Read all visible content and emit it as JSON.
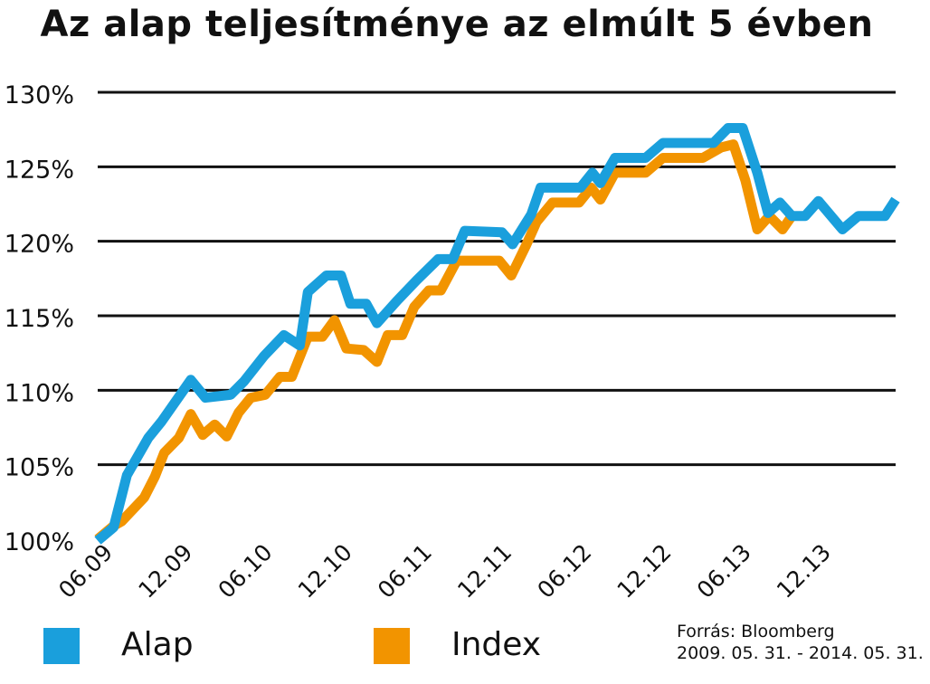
{
  "chart_data": {
    "type": "line",
    "title": "Az alap teljesítménye az elmúlt 5 évben",
    "xlabel": "",
    "ylabel": "",
    "ylim": [
      100,
      130
    ],
    "yticks": [
      "100%",
      "105%",
      "110%",
      "115%",
      "120%",
      "125%",
      "130%"
    ],
    "ytick_values": [
      100,
      105,
      110,
      115,
      120,
      125,
      130
    ],
    "x_range": [
      0,
      60
    ],
    "xticks": [
      {
        "label": "06.09",
        "x": 0
      },
      {
        "label": "12.09",
        "x": 6
      },
      {
        "label": "06.10",
        "x": 12
      },
      {
        "label": "12.10",
        "x": 18
      },
      {
        "label": "06.11",
        "x": 24
      },
      {
        "label": "12.11",
        "x": 30
      },
      {
        "label": "06.12",
        "x": 36
      },
      {
        "label": "12.12",
        "x": 42
      },
      {
        "label": "06.13",
        "x": 48
      },
      {
        "label": "12.13",
        "x": 54
      }
    ],
    "grid": true,
    "legend_position": "bottom",
    "series": [
      {
        "name": "Alap",
        "color": "#1a9fdc",
        "points": [
          [
            0,
            99.9
          ],
          [
            1.2,
            100.8
          ],
          [
            2.2,
            104.3
          ],
          [
            3.8,
            106.8
          ],
          [
            4.8,
            107.9
          ],
          [
            7.0,
            110.7
          ],
          [
            8.1,
            109.5
          ],
          [
            10.0,
            109.7
          ],
          [
            11.0,
            110.6
          ],
          [
            12.5,
            112.3
          ],
          [
            14.0,
            113.7
          ],
          [
            15.2,
            113.0
          ],
          [
            15.8,
            116.6
          ],
          [
            17.2,
            117.7
          ],
          [
            18.3,
            117.7
          ],
          [
            19.0,
            115.8
          ],
          [
            20.2,
            115.8
          ],
          [
            21.0,
            114.5
          ],
          [
            22.5,
            116.0
          ],
          [
            24.0,
            117.4
          ],
          [
            25.6,
            118.8
          ],
          [
            26.7,
            118.8
          ],
          [
            27.6,
            120.7
          ],
          [
            30.4,
            120.6
          ],
          [
            31.2,
            119.8
          ],
          [
            32.6,
            121.8
          ],
          [
            33.3,
            123.6
          ],
          [
            35.6,
            123.6
          ],
          [
            36.3,
            123.6
          ],
          [
            37.2,
            124.6
          ],
          [
            37.8,
            123.9
          ],
          [
            38.9,
            125.6
          ],
          [
            41.2,
            125.6
          ],
          [
            42.5,
            126.6
          ],
          [
            46.3,
            126.6
          ],
          [
            47.4,
            127.6
          ],
          [
            48.5,
            127.6
          ],
          [
            49.6,
            124.6
          ],
          [
            50.4,
            121.9
          ],
          [
            51.3,
            122.6
          ],
          [
            52.2,
            121.7
          ],
          [
            53.2,
            121.7
          ],
          [
            54.2,
            122.7
          ],
          [
            56.0,
            120.8
          ],
          [
            57.2,
            121.7
          ],
          [
            59.2,
            121.7
          ],
          [
            60.0,
            122.8
          ]
        ]
      },
      {
        "name": "Index",
        "color": "#f29400",
        "points": [
          [
            0,
            100.0
          ],
          [
            1.2,
            100.9
          ],
          [
            1.8,
            101.2
          ],
          [
            3.5,
            102.8
          ],
          [
            4.3,
            104.2
          ],
          [
            5.0,
            105.8
          ],
          [
            6.1,
            106.8
          ],
          [
            7.0,
            108.4
          ],
          [
            7.9,
            107.0
          ],
          [
            8.8,
            107.7
          ],
          [
            9.7,
            106.9
          ],
          [
            10.6,
            108.5
          ],
          [
            11.5,
            109.5
          ],
          [
            12.6,
            109.7
          ],
          [
            13.7,
            110.9
          ],
          [
            14.6,
            110.9
          ],
          [
            15.8,
            113.6
          ],
          [
            16.9,
            113.6
          ],
          [
            17.8,
            114.7
          ],
          [
            18.7,
            112.8
          ],
          [
            20.0,
            112.7
          ],
          [
            21.0,
            111.9
          ],
          [
            21.8,
            113.7
          ],
          [
            22.9,
            113.7
          ],
          [
            23.8,
            115.6
          ],
          [
            24.9,
            116.7
          ],
          [
            25.8,
            116.7
          ],
          [
            27.0,
            118.7
          ],
          [
            30.2,
            118.7
          ],
          [
            31.1,
            117.7
          ],
          [
            32.2,
            119.7
          ],
          [
            33.0,
            121.3
          ],
          [
            34.2,
            122.6
          ],
          [
            36.2,
            122.6
          ],
          [
            37.1,
            123.6
          ],
          [
            37.8,
            122.8
          ],
          [
            38.9,
            124.6
          ],
          [
            41.2,
            124.6
          ],
          [
            42.5,
            125.6
          ],
          [
            45.5,
            125.6
          ],
          [
            46.9,
            126.3
          ],
          [
            47.8,
            126.5
          ],
          [
            48.7,
            124.1
          ],
          [
            49.6,
            120.8
          ],
          [
            50.5,
            121.7
          ],
          [
            51.5,
            120.8
          ],
          [
            52.2,
            121.7
          ]
        ]
      }
    ]
  },
  "legend": [
    {
      "label": "Alap",
      "color": "#1a9fdc"
    },
    {
      "label": "Index",
      "color": "#f29400"
    }
  ],
  "source": {
    "line1": "Forrás: Bloomberg",
    "line2": "2009. 05. 31. - 2014. 05. 31."
  }
}
